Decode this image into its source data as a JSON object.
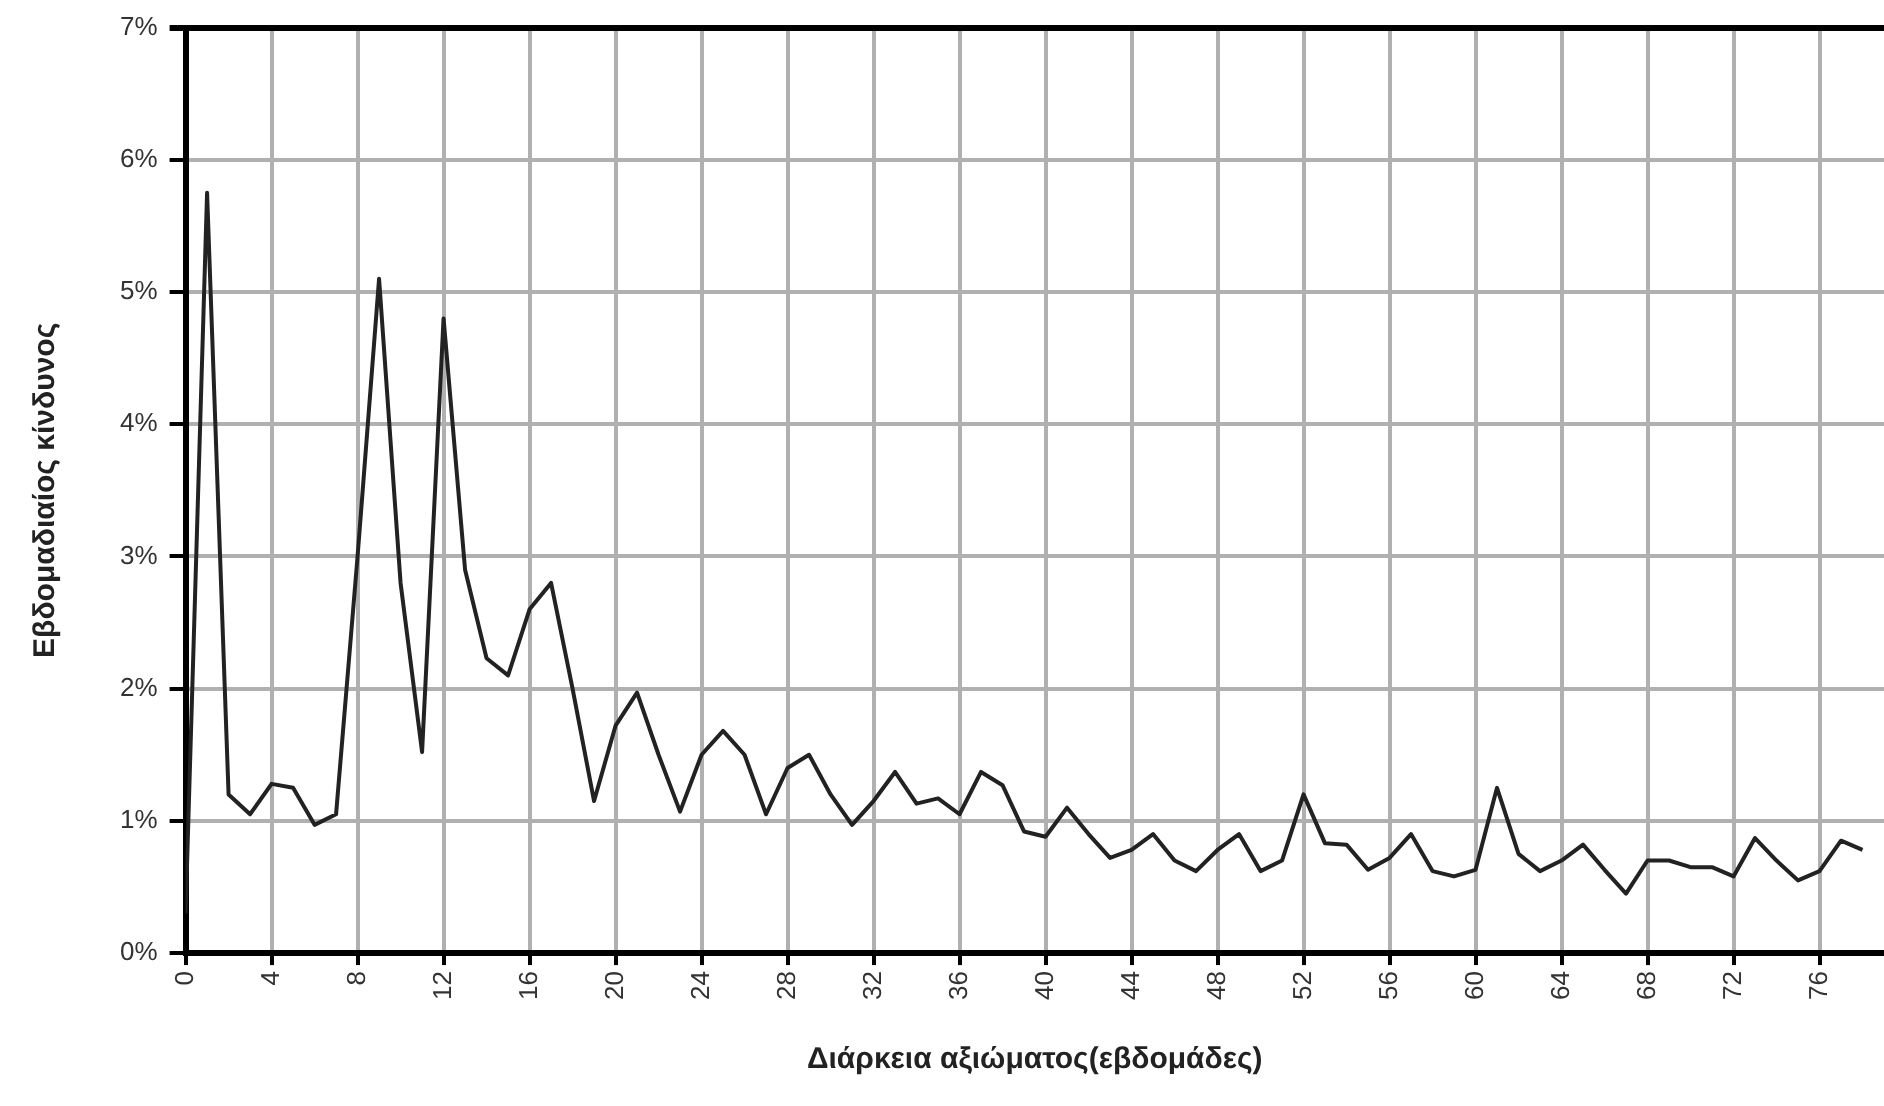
{
  "chart_data": {
    "type": "line",
    "xlabel": "Διάρκεια αξιώματος(εβδομάδες)",
    "ylabel": "Εβδομαδιαίος κίνδυνος",
    "x": [
      0,
      1,
      2,
      3,
      4,
      5,
      6,
      7,
      8,
      9,
      10,
      11,
      12,
      13,
      14,
      15,
      16,
      17,
      18,
      19,
      20,
      21,
      22,
      23,
      24,
      25,
      26,
      27,
      28,
      29,
      30,
      31,
      32,
      33,
      34,
      35,
      36,
      37,
      38,
      39,
      40,
      41,
      42,
      43,
      44,
      45,
      46,
      47,
      48,
      49,
      50,
      51,
      52,
      53,
      54,
      55,
      56,
      57,
      58,
      59,
      60,
      61,
      62,
      63,
      64,
      65,
      66,
      67,
      68,
      69,
      70,
      71,
      72,
      73,
      74,
      75,
      76,
      77,
      78
    ],
    "series": [
      {
        "color": "#222222",
        "values": [
          0.3,
          5.75,
          1.2,
          1.05,
          1.28,
          1.25,
          0.97,
          1.05,
          3.0,
          5.1,
          2.8,
          1.52,
          4.8,
          2.9,
          2.23,
          2.1,
          2.6,
          2.8,
          2.0,
          1.15,
          1.72,
          1.97,
          1.5,
          1.07,
          1.5,
          1.68,
          1.5,
          1.05,
          1.4,
          1.5,
          1.2,
          0.97,
          1.15,
          1.37,
          1.13,
          1.17,
          1.05,
          1.37,
          1.27,
          0.92,
          0.88,
          1.1,
          0.9,
          0.72,
          0.78,
          0.9,
          0.7,
          0.62,
          0.78,
          0.9,
          0.62,
          0.7,
          1.2,
          0.83,
          0.82,
          0.63,
          0.72,
          0.9,
          0.62,
          0.58,
          0.63,
          1.25,
          0.75,
          0.62,
          0.7,
          0.82,
          0.63,
          0.45,
          0.7,
          0.7,
          0.65,
          0.65,
          0.58,
          0.87,
          0.7,
          0.55,
          0.62,
          0.85,
          0.78
        ]
      }
    ],
    "xlim": [
      0,
      79
    ],
    "xticks": [
      0,
      4,
      8,
      12,
      16,
      20,
      24,
      28,
      32,
      36,
      40,
      44,
      48,
      52,
      56,
      60,
      64,
      68,
      72,
      76
    ],
    "ylim": [
      0,
      7
    ],
    "yticks": [
      {
        "value": 0,
        "label": "0%"
      },
      {
        "value": 1,
        "label": "1%"
      },
      {
        "value": 2,
        "label": "2%"
      },
      {
        "value": 3,
        "label": "3%"
      },
      {
        "value": 4,
        "label": "4%"
      },
      {
        "value": 5,
        "label": "5%"
      },
      {
        "value": 6,
        "label": "6%"
      },
      {
        "value": 7,
        "label": "7%"
      }
    ],
    "grid": true,
    "marker": "none",
    "line_style": "solid"
  }
}
